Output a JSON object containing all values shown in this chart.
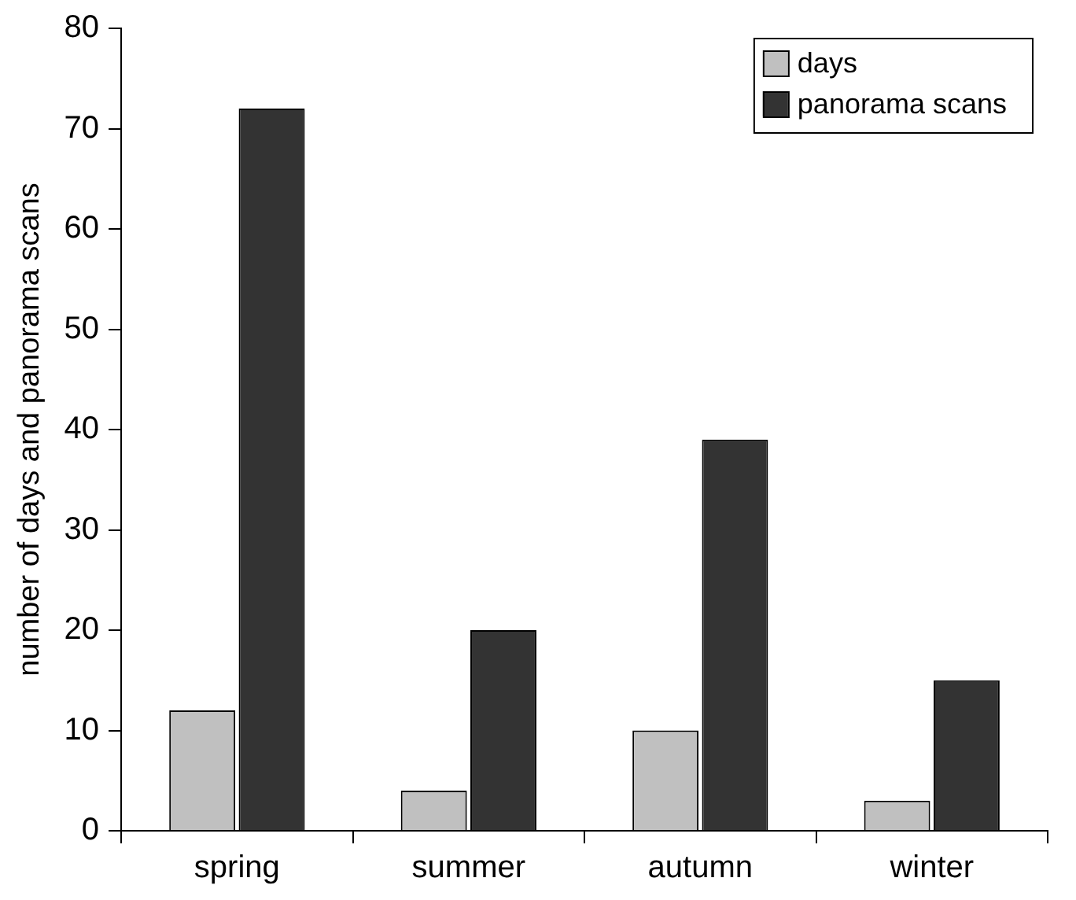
{
  "chart_data": {
    "type": "bar",
    "ylabel": "number of days and panorama scans",
    "categories": [
      "spring",
      "summer",
      "autumn",
      "winter"
    ],
    "series": [
      {
        "name": "days",
        "color": "#c0c0c0",
        "values": [
          12,
          4,
          10,
          3
        ]
      },
      {
        "name": "panorama scans",
        "color": "#333333",
        "values": [
          72,
          20,
          39,
          15
        ]
      }
    ],
    "ylim": [
      0,
      80
    ],
    "yticks": [
      0,
      10,
      20,
      30,
      40,
      50,
      60,
      70,
      80
    ],
    "grid": false,
    "legend": "top right"
  }
}
